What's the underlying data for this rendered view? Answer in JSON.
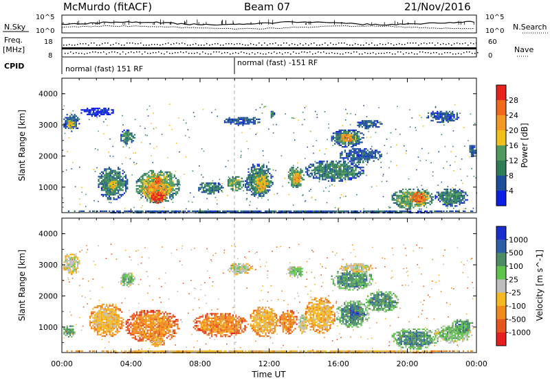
{
  "header": {
    "station": "McMurdo (fitACF)",
    "beam": "Beam 07",
    "date": "21/Nov/2016"
  },
  "top_panels": {
    "nsky_label": "N.Sky",
    "nsearch_label": "N.Search",
    "nsky_ticks": [
      "10^5",
      "10^0"
    ],
    "nsearch_ticks": [
      "10^5",
      "10^0"
    ],
    "freq_label": [
      "Freq.",
      "[MHz]"
    ],
    "freq_ticks": [
      "18",
      "8"
    ],
    "nave_label": "Nave",
    "nave_ticks": [
      "60",
      "0"
    ],
    "cpid_label": "CPID",
    "cpid_segments": [
      {
        "label": "normal (fast) 151 RF",
        "start_hour": 0,
        "end_hour": 10
      },
      {
        "label": "normal (fast) -151 RF",
        "start_hour": 10,
        "end_hour": 24
      }
    ]
  },
  "chart_data": [
    {
      "type": "heatmap",
      "title": "",
      "quantity": "Power",
      "xlabel": "",
      "ylabel": "Slant Range [km]",
      "colorbar_label": "Power [dB]",
      "colorbar_ticks": [
        "28",
        "24",
        "20",
        "16",
        "12",
        "8",
        "4"
      ],
      "colorbar_colors": [
        "#e8231e",
        "#f06a1a",
        "#f39a24",
        "#f2c01a",
        "#4f9a5e",
        "#2e7d58",
        "#1c4e9a",
        "#0a1ee8"
      ],
      "xlim": [
        0,
        24
      ],
      "ylim": [
        180,
        4500
      ],
      "yticks": [
        1000,
        2000,
        3000,
        4000
      ],
      "regions": [
        {
          "x": [
            0.0,
            24.0
          ],
          "y": [
            180,
            300
          ],
          "level": 1
        },
        {
          "x": [
            0.0,
            1.0
          ],
          "y": [
            2800,
            3400
          ],
          "level": 1
        },
        {
          "x": [
            0.2,
            0.8
          ],
          "y": [
            2900,
            3200
          ],
          "level": 4
        },
        {
          "x": [
            1.0,
            3.0
          ],
          "y": [
            3300,
            3600
          ],
          "level": 0
        },
        {
          "x": [
            2.0,
            3.8
          ],
          "y": [
            600,
            1700
          ],
          "level": 2
        },
        {
          "x": [
            2.5,
            3.3
          ],
          "y": [
            900,
            1300
          ],
          "level": 4
        },
        {
          "x": [
            3.3,
            4.2
          ],
          "y": [
            2400,
            2900
          ],
          "level": 2
        },
        {
          "x": [
            4.2,
            6.8
          ],
          "y": [
            500,
            1600
          ],
          "level": 3
        },
        {
          "x": [
            4.6,
            6.3
          ],
          "y": [
            600,
            1300
          ],
          "level": 5
        },
        {
          "x": [
            5.0,
            6.0
          ],
          "y": [
            500,
            900
          ],
          "level": 7
        },
        {
          "x": [
            5.2,
            5.8
          ],
          "y": [
            1100,
            1400
          ],
          "level": 6
        },
        {
          "x": [
            7.8,
            9.3
          ],
          "y": [
            800,
            1200
          ],
          "level": 2
        },
        {
          "x": [
            9.5,
            10.5
          ],
          "y": [
            900,
            1400
          ],
          "level": 3
        },
        {
          "x": [
            10.5,
            12.2
          ],
          "y": [
            700,
            1800
          ],
          "level": 2
        },
        {
          "x": [
            11.0,
            12.0
          ],
          "y": [
            800,
            1500
          ],
          "level": 4
        },
        {
          "x": [
            9.3,
            11.5
          ],
          "y": [
            3000,
            3300
          ],
          "level": 1
        },
        {
          "x": [
            12.0,
            12.3
          ],
          "y": [
            3200,
            3500
          ],
          "level": 2
        },
        {
          "x": [
            13.0,
            14.0
          ],
          "y": [
            1000,
            1700
          ],
          "level": 3
        },
        {
          "x": [
            13.3,
            13.8
          ],
          "y": [
            1100,
            1500
          ],
          "level": 5
        },
        {
          "x": [
            14.0,
            17.5
          ],
          "y": [
            1200,
            1900
          ],
          "level": 2
        },
        {
          "x": [
            16.0,
            18.5
          ],
          "y": [
            1800,
            2300
          ],
          "level": 1
        },
        {
          "x": [
            15.5,
            17.5
          ],
          "y": [
            2300,
            2900
          ],
          "level": 2
        },
        {
          "x": [
            16.0,
            17.0
          ],
          "y": [
            2450,
            2750
          ],
          "level": 5
        },
        {
          "x": [
            17.0,
            18.5
          ],
          "y": [
            2900,
            3200
          ],
          "level": 1
        },
        {
          "x": [
            19.0,
            21.5
          ],
          "y": [
            300,
            1000
          ],
          "level": 3
        },
        {
          "x": [
            20.0,
            21.2
          ],
          "y": [
            500,
            900
          ],
          "level": 6
        },
        {
          "x": [
            21.5,
            23.5
          ],
          "y": [
            400,
            1000
          ],
          "level": 2
        },
        {
          "x": [
            21.0,
            23.0
          ],
          "y": [
            3100,
            3500
          ],
          "level": 1
        },
        {
          "x": [
            23.5,
            24.0
          ],
          "y": [
            2000,
            2400
          ],
          "level": 1
        }
      ]
    },
    {
      "type": "heatmap",
      "title": "",
      "quantity": "Velocity",
      "xlabel": "Time UT",
      "ylabel": "Slant Range [km]",
      "colorbar_label": "Velocity [m s^-1]",
      "colorbar_ticks": [
        "1000",
        "500",
        "100",
        "25",
        "-25",
        "-100",
        "-500",
        "-1000"
      ],
      "colorbar_colors": [
        "#1a2ecf",
        "#2e5ea8",
        "#4c8c64",
        "#5fc24a",
        "#bdbdbd",
        "#f5b820",
        "#f08a1c",
        "#e8541e",
        "#e81e1e"
      ],
      "xlim": [
        0,
        24
      ],
      "ylim": [
        180,
        4500
      ],
      "yticks": [
        1000,
        2000,
        3000,
        4000
      ],
      "xticks": [
        "00:00",
        "04:00",
        "08:00",
        "12:00",
        "16:00",
        "20:00",
        "00:00"
      ],
      "regions": [
        {
          "x": [
            0.0,
            24.0
          ],
          "y": [
            180,
            300
          ],
          "level": 3
        },
        {
          "x": [
            0.0,
            1.0
          ],
          "y": [
            2700,
            3400
          ],
          "level": 4
        },
        {
          "x": [
            0.0,
            0.8
          ],
          "y": [
            700,
            1100
          ],
          "level": 6
        },
        {
          "x": [
            1.5,
            3.6
          ],
          "y": [
            700,
            1800
          ],
          "level": 3
        },
        {
          "x": [
            3.3,
            4.2
          ],
          "y": [
            2300,
            2800
          ],
          "level": 5
        },
        {
          "x": [
            3.6,
            6.8
          ],
          "y": [
            500,
            1600
          ],
          "level": 2
        },
        {
          "x": [
            5.0,
            6.0
          ],
          "y": [
            400,
            700
          ],
          "level": 3
        },
        {
          "x": [
            7.5,
            10.8
          ],
          "y": [
            700,
            1500
          ],
          "level": 2
        },
        {
          "x": [
            9.5,
            11.0
          ],
          "y": [
            2700,
            3100
          ],
          "level": 4
        },
        {
          "x": [
            10.8,
            12.5
          ],
          "y": [
            700,
            1700
          ],
          "level": 3
        },
        {
          "x": [
            12.5,
            13.6
          ],
          "y": [
            800,
            1600
          ],
          "level": 2
        },
        {
          "x": [
            13.6,
            14.2
          ],
          "y": [
            800,
            1500
          ],
          "level": 4
        },
        {
          "x": [
            13.0,
            14.0
          ],
          "y": [
            2600,
            3000
          ],
          "level": 5
        },
        {
          "x": [
            14.0,
            15.8
          ],
          "y": [
            800,
            2000
          ],
          "level": 3
        },
        {
          "x": [
            15.8,
            17.8
          ],
          "y": [
            1000,
            1900
          ],
          "level": 6
        },
        {
          "x": [
            16.5,
            17.2
          ],
          "y": [
            1200,
            1700
          ],
          "level": 7
        },
        {
          "x": [
            15.5,
            18.0
          ],
          "y": [
            2200,
            2900
          ],
          "level": 6
        },
        {
          "x": [
            16.0,
            18.0
          ],
          "y": [
            2800,
            3100
          ],
          "level": 4
        },
        {
          "x": [
            17.5,
            19.5
          ],
          "y": [
            1500,
            2200
          ],
          "level": 6
        },
        {
          "x": [
            19.0,
            21.8
          ],
          "y": [
            300,
            1000
          ],
          "level": 6
        },
        {
          "x": [
            21.5,
            23.7
          ],
          "y": [
            500,
            1100
          ],
          "level": 5
        },
        {
          "x": [
            22.5,
            23.8
          ],
          "y": [
            800,
            1300
          ],
          "level": 6
        }
      ]
    }
  ]
}
